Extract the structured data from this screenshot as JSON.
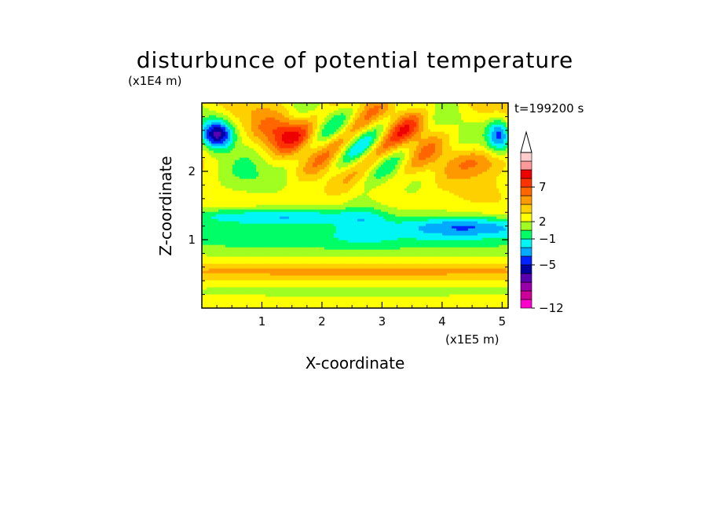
{
  "chart_data": {
    "type": "heatmap",
    "title": "disturbunce of potential temperature",
    "time_label": "t=199200 s",
    "xlabel": "X-coordinate",
    "ylabel": "Z-coordinate",
    "x_unit": "(x1E5 m)",
    "y_unit": "(x1E4 m)",
    "xlim": [
      0,
      5.1
    ],
    "ylim": [
      0,
      3.0
    ],
    "x_ticks": [
      "1",
      "2",
      "3",
      "4",
      "5"
    ],
    "x_tick_values": [
      1,
      2,
      3,
      4,
      5
    ],
    "y_ticks": [
      "1",
      "2"
    ],
    "y_tick_values": [
      1,
      2
    ],
    "colorbar": {
      "colors": [
        "#ff00cc",
        "#cc0099",
        "#9900aa",
        "#5a00b0",
        "#0000a0",
        "#0022ff",
        "#00aaff",
        "#00f5f5",
        "#00ff66",
        "#a0ff20",
        "#ffff00",
        "#ffd000",
        "#ff9900",
        "#ff6600",
        "#ff3300",
        "#ee0000",
        "#ff9999",
        "#ffcccc"
      ],
      "labels": [
        "-12",
        "-5",
        "-1",
        "2",
        "7"
      ],
      "label_positions": [
        0,
        5,
        8,
        10,
        14
      ],
      "extend_top": true
    }
  }
}
